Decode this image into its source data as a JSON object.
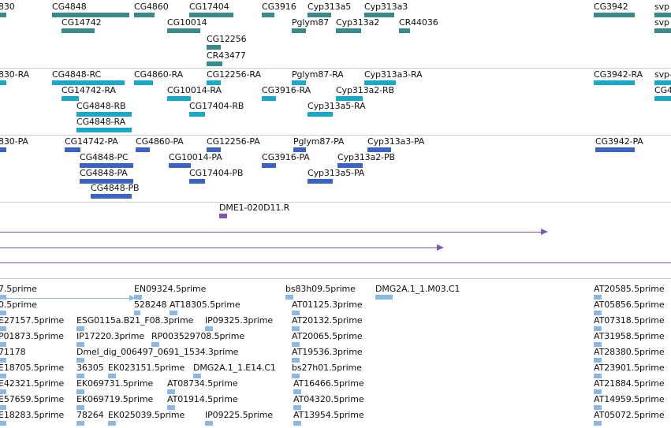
{
  "gene_track": {
    "labels": [
      {
        "id": "g1",
        "text": "830"
      },
      {
        "id": "g2",
        "text": "CG4848"
      },
      {
        "id": "g3",
        "text": "CG4860"
      },
      {
        "id": "g4",
        "text": "CG17404"
      },
      {
        "id": "g5",
        "text": "CG3916"
      },
      {
        "id": "g6",
        "text": "Cyp313a5"
      },
      {
        "id": "g7",
        "text": "Cyp313a3"
      },
      {
        "id": "g8",
        "text": "CG3942"
      },
      {
        "id": "g9",
        "text": "svp"
      },
      {
        "id": "g10",
        "text": "CG14742"
      },
      {
        "id": "g11",
        "text": "CG10014"
      },
      {
        "id": "g12",
        "text": "Pglym87"
      },
      {
        "id": "g13",
        "text": "Cyp313a2"
      },
      {
        "id": "g14",
        "text": "CR44036"
      },
      {
        "id": "g15",
        "text": "CG12256"
      },
      {
        "id": "g16",
        "text": "CR43477"
      }
    ]
  },
  "transcript_track": {
    "labels": [
      {
        "id": "t1",
        "text": "830-RA"
      },
      {
        "id": "t2",
        "text": "CG4848-RC"
      },
      {
        "id": "t3",
        "text": "CG4860-RA"
      },
      {
        "id": "t4",
        "text": "CG12256-RA"
      },
      {
        "id": "t5",
        "text": "Pglym87-RA"
      },
      {
        "id": "t6",
        "text": "Cyp313a3-RA"
      },
      {
        "id": "t7",
        "text": "CG3942-RA"
      },
      {
        "id": "t8",
        "text": "svp-"
      },
      {
        "id": "t9",
        "text": "CG14742-RA"
      },
      {
        "id": "t10",
        "text": "CG10014-RA"
      },
      {
        "id": "t11",
        "text": "CG3916-RA"
      },
      {
        "id": "t12",
        "text": "Cyp313a2-RB"
      },
      {
        "id": "t13",
        "text": "CG4"
      },
      {
        "id": "t14",
        "text": "CG4848-RB"
      },
      {
        "id": "t15",
        "text": "CG17404-RB"
      },
      {
        "id": "t16",
        "text": "Cyp313a5-RA"
      },
      {
        "id": "t17",
        "text": "CG4848-RA"
      }
    ]
  },
  "protein_track": {
    "labels": [
      {
        "id": "p1",
        "text": "830-PA"
      },
      {
        "id": "p2",
        "text": "CG14742-PA"
      },
      {
        "id": "p3",
        "text": "CG4860-PA"
      },
      {
        "id": "p4",
        "text": "CG12256-PA"
      },
      {
        "id": "p5",
        "text": "Pglym87-PA"
      },
      {
        "id": "p6",
        "text": "Cyp313a3-PA"
      },
      {
        "id": "p7",
        "text": "CG3942-PA"
      },
      {
        "id": "p8",
        "text": "CG4848-PC"
      },
      {
        "id": "p9",
        "text": "CG10014-PA"
      },
      {
        "id": "p10",
        "text": "CG3916-PA"
      },
      {
        "id": "p11",
        "text": "Cyp313a2-PB"
      },
      {
        "id": "p12",
        "text": "CG4848-PA"
      },
      {
        "id": "p13",
        "text": "CG17404-PB"
      },
      {
        "id": "p14",
        "text": "Cyp313a5-PA"
      },
      {
        "id": "p15",
        "text": "CG4848-PB"
      }
    ]
  },
  "clone_track": {
    "labels": [
      {
        "id": "c1",
        "text": "DME1-020D11.R"
      }
    ]
  },
  "est_track": {
    "labels": [
      {
        "id": "e1",
        "text": "7.5prime"
      },
      {
        "id": "e2",
        "text": "EN09324.5prime"
      },
      {
        "id": "e3",
        "text": "bs83h09.5prime"
      },
      {
        "id": "e4",
        "text": "DMG2A.1_1.M03.C1"
      },
      {
        "id": "e5",
        "text": "AT20585.5prime"
      },
      {
        "id": "e6",
        "text": "0.5prime"
      },
      {
        "id": "e7",
        "text": "528248"
      },
      {
        "id": "e8",
        "text": "AT18305.5prime"
      },
      {
        "id": "e9",
        "text": "AT01125.3prime"
      },
      {
        "id": "e10",
        "text": "AT05856.5prime"
      },
      {
        "id": "e11",
        "text": "E27157.5prime"
      },
      {
        "id": "e12",
        "text": "ESG0115a.B21_F08.3prime"
      },
      {
        "id": "e13",
        "text": "IP09325.3prime"
      },
      {
        "id": "e14",
        "text": "AT20132.5prime"
      },
      {
        "id": "e15",
        "text": "AT07318.5prime"
      },
      {
        "id": "e16",
        "text": "P01873.5prime"
      },
      {
        "id": "e17",
        "text": "IP17220.3prime"
      },
      {
        "id": "e18",
        "text": "RP003529708.5prime"
      },
      {
        "id": "e19",
        "text": "AT20065.5prime"
      },
      {
        "id": "e20",
        "text": "AT31958.5prime"
      },
      {
        "id": "e21",
        "text": "71178"
      },
      {
        "id": "e22",
        "text": "Dmel_dig_006497_0691_1534.3prime"
      },
      {
        "id": "e23",
        "text": "AT19536.3prime"
      },
      {
        "id": "e24",
        "text": "AT28380.5prime"
      },
      {
        "id": "e25",
        "text": "E18705.5prime"
      },
      {
        "id": "e26",
        "text": "36305"
      },
      {
        "id": "e27",
        "text": "EK023151.5prime"
      },
      {
        "id": "e28",
        "text": "DMG2A.1_1.E14.C1"
      },
      {
        "id": "e29",
        "text": "bs27h01.5prime"
      },
      {
        "id": "e30",
        "text": "AT23901.5prime"
      },
      {
        "id": "e31",
        "text": "E42321.5prime"
      },
      {
        "id": "e32",
        "text": "EK069731.5prime"
      },
      {
        "id": "e33",
        "text": "AT08734.5prime"
      },
      {
        "id": "e34",
        "text": "AT16466.5prime"
      },
      {
        "id": "e35",
        "text": "AT21884.5prime"
      },
      {
        "id": "e36",
        "text": "E57659.5prime"
      },
      {
        "id": "e37",
        "text": "EK069719.5prime"
      },
      {
        "id": "e38",
        "text": "AT01914.5prime"
      },
      {
        "id": "e39",
        "text": "AT04320.5prime"
      },
      {
        "id": "e40",
        "text": "AT14959.5prime"
      },
      {
        "id": "e41",
        "text": "E18283.5prime"
      },
      {
        "id": "e42",
        "text": "78264"
      },
      {
        "id": "e43",
        "text": "EK025039.5prime"
      },
      {
        "id": "e44",
        "text": "IP09225.5prime"
      },
      {
        "id": "e45",
        "text": "AT13954.5prime"
      },
      {
        "id": "e46",
        "text": "AT05072.5prime"
      }
    ]
  },
  "colors": {
    "gene": "#3a8a8a",
    "transcript": "#1aa8c8",
    "protein": "#3a62c8",
    "clone": "#7a5ab0",
    "est": "#8cb8e0"
  }
}
